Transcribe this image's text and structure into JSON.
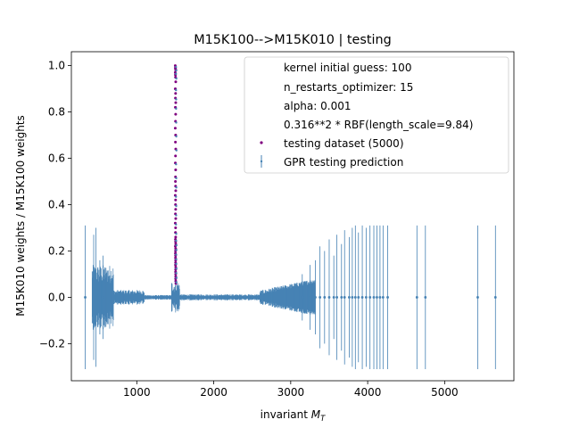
{
  "chart_data": {
    "type": "scatter",
    "title": "M15K100-->M15K010 | testing",
    "xlabel": "invariant M_T",
    "ylabel": "M15K010 weights / M15K100 weights",
    "xlim": [
      150,
      5900
    ],
    "ylim": [
      -0.36,
      1.06
    ],
    "x_ticks": [
      1000,
      2000,
      3000,
      4000,
      5000
    ],
    "x_tick_labels": [
      "1000",
      "2000",
      "3000",
      "4000",
      "5000"
    ],
    "y_ticks": [
      -0.2,
      0.0,
      0.2,
      0.4,
      0.6,
      0.8,
      1.0
    ],
    "y_tick_labels": [
      "−0.2",
      "0.0",
      "0.2",
      "0.4",
      "0.6",
      "0.8",
      "1.0"
    ],
    "grid": false,
    "legend_position": "top-right",
    "legend": {
      "text_entries": [
        "kernel initial guess: 100",
        "n_restarts_optimizer: 15",
        "alpha: 0.001",
        "0.316**2 * RBF(length_scale=9.84)"
      ],
      "series_entries": [
        {
          "label": "testing dataset (5000)",
          "marker": "dot",
          "color": "#800080"
        },
        {
          "label": "GPR testing prediction",
          "marker": "errorbar",
          "color": "#4682b4"
        }
      ]
    },
    "colors": {
      "testing": "#800080",
      "prediction": "#4682b4"
    },
    "series": [
      {
        "name": "testing dataset (5000)",
        "color": "#800080",
        "x": [
          1500,
          1502,
          1504,
          1506,
          1500,
          1502,
          1504,
          1506,
          1500,
          1504,
          1502,
          1506,
          1501,
          1505,
          1503,
          1500,
          1504,
          1502,
          1506,
          1503,
          1501,
          1505,
          1503,
          1502,
          1504,
          1506,
          1500,
          1504,
          1503,
          1505,
          1502,
          1506,
          1500,
          1504,
          1503,
          1505,
          1502,
          1504,
          1506,
          1501,
          1505,
          1503,
          1502,
          1504,
          1503,
          1505,
          1504,
          1503,
          1506,
          1505,
          1504,
          1505,
          1506,
          1505,
          1506,
          1508
        ],
        "y": [
          1.0,
          0.99,
          0.985,
          0.98,
          0.97,
          0.96,
          0.95,
          0.93,
          0.9,
          0.88,
          0.86,
          0.84,
          0.82,
          0.79,
          0.76,
          0.73,
          0.7,
          0.67,
          0.64,
          0.61,
          0.58,
          0.55,
          0.52,
          0.5,
          0.48,
          0.46,
          0.44,
          0.42,
          0.4,
          0.38,
          0.36,
          0.34,
          0.32,
          0.3,
          0.28,
          0.26,
          0.25,
          0.24,
          0.23,
          0.22,
          0.21,
          0.2,
          0.19,
          0.18,
          0.17,
          0.16,
          0.15,
          0.14,
          0.13,
          0.12,
          0.11,
          0.1,
          0.09,
          0.08,
          0.07,
          0.06
        ]
      },
      {
        "name": "GPR testing prediction",
        "color": "#4682b4",
        "errorbars": [
          {
            "x": 330,
            "y": 0.0,
            "err": 0.31
          },
          {
            "x": 440,
            "y": 0.0,
            "err": 0.27
          },
          {
            "x": 470,
            "y": 0.0,
            "err": 0.3
          },
          {
            "x": 520,
            "y": 0.0,
            "err": 0.16
          },
          {
            "x": 560,
            "y": 0.0,
            "err": 0.18
          },
          {
            "x": 3150,
            "y": 0.0,
            "err": 0.1
          },
          {
            "x": 3250,
            "y": 0.0,
            "err": 0.14
          },
          {
            "x": 3320,
            "y": 0.0,
            "err": 0.16
          },
          {
            "x": 3380,
            "y": 0.0,
            "err": 0.22
          },
          {
            "x": 3440,
            "y": 0.0,
            "err": 0.2
          },
          {
            "x": 3500,
            "y": 0.0,
            "err": 0.25
          },
          {
            "x": 3560,
            "y": 0.0,
            "err": 0.18
          },
          {
            "x": 3600,
            "y": 0.0,
            "err": 0.27
          },
          {
            "x": 3660,
            "y": 0.0,
            "err": 0.23
          },
          {
            "x": 3700,
            "y": 0.0,
            "err": 0.29
          },
          {
            "x": 3760,
            "y": 0.0,
            "err": 0.26
          },
          {
            "x": 3800,
            "y": 0.0,
            "err": 0.3
          },
          {
            "x": 3840,
            "y": 0.0,
            "err": 0.31
          },
          {
            "x": 3880,
            "y": 0.0,
            "err": 0.28
          },
          {
            "x": 3930,
            "y": 0.0,
            "err": 0.31
          },
          {
            "x": 3980,
            "y": 0.0,
            "err": 0.3
          },
          {
            "x": 4030,
            "y": 0.0,
            "err": 0.31
          },
          {
            "x": 4080,
            "y": 0.0,
            "err": 0.31
          },
          {
            "x": 4120,
            "y": 0.0,
            "err": 0.31
          },
          {
            "x": 4160,
            "y": 0.0,
            "err": 0.31
          },
          {
            "x": 4200,
            "y": 0.0,
            "err": 0.31
          },
          {
            "x": 4260,
            "y": 0.0,
            "err": 0.31
          },
          {
            "x": 4640,
            "y": 0.0,
            "err": 0.31
          },
          {
            "x": 4750,
            "y": 0.0,
            "err": 0.31
          },
          {
            "x": 5430,
            "y": 0.0,
            "err": 0.31
          },
          {
            "x": 5660,
            "y": 0.0,
            "err": 0.31
          }
        ],
        "peak_x": [
          1500,
          1502,
          1504,
          1506,
          1508,
          1503,
          1505,
          1501
        ],
        "peak_y": [
          0.99,
          0.95,
          0.9,
          0.82,
          0.7,
          0.55,
          0.4,
          0.28
        ],
        "dense_band_x_range": [
          420,
          3320
        ]
      }
    ]
  }
}
